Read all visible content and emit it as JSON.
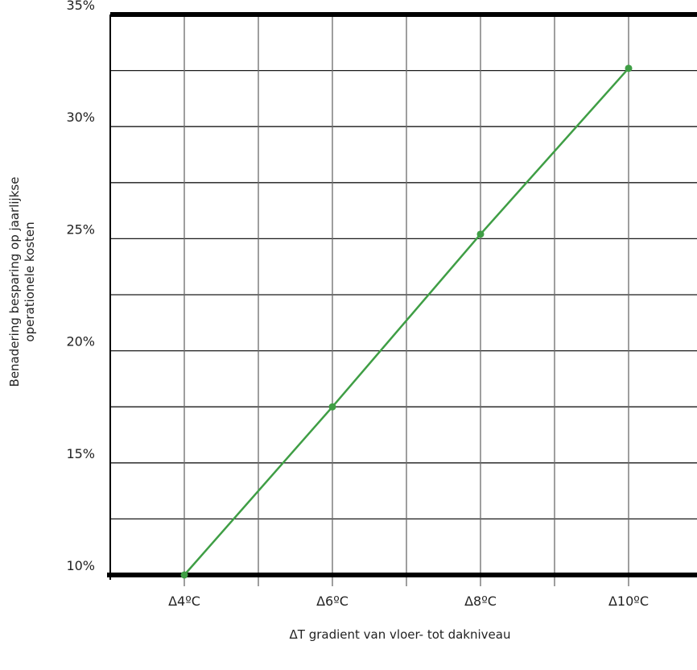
{
  "chart_data": {
    "type": "line",
    "title": "",
    "xlabel": "ΔT gradient van vloer- tot dakniveau",
    "ylabel_line1": "Benadering besparing op jaarlijkse",
    "ylabel_line2": "operationele kosten",
    "categories": [
      "Δ4ºC",
      "Δ6ºC",
      "Δ8ºC",
      "Δ10ºC"
    ],
    "series": [
      {
        "values": [
          10,
          17.5,
          25.2,
          32.6
        ]
      }
    ],
    "ylim": [
      10,
      35
    ],
    "yticks": [
      "10%",
      "15%",
      "20%",
      "25%",
      "30%",
      "35%"
    ],
    "grid": true,
    "line_color": "#3f9e45"
  }
}
